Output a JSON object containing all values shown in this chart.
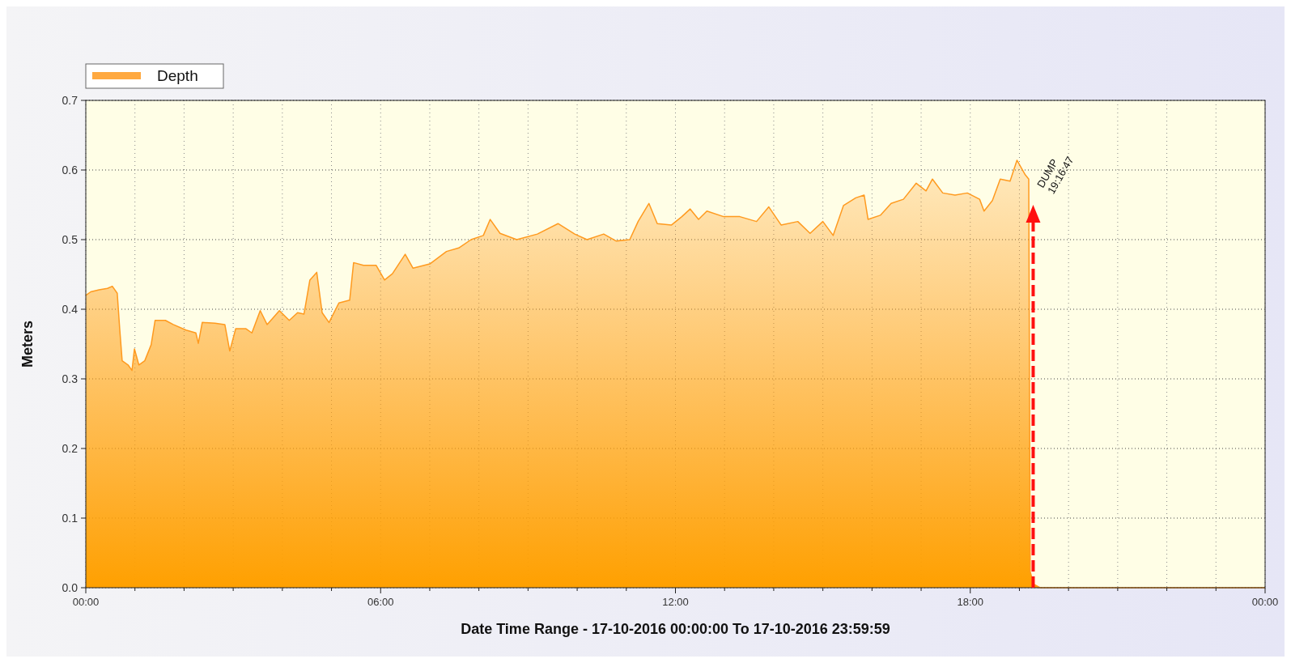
{
  "chart_data": {
    "type": "area",
    "xlabel": "Date Time Range - 17-10-2016 00:00:00 To 17-10-2016 23:59:59",
    "ylabel": "Meters",
    "legend": "top left",
    "grid": true,
    "marker": "none",
    "xlim": [
      0,
      24
    ],
    "xticks": [
      {
        "value": 0,
        "label": "00:00"
      },
      {
        "value": 1,
        "label": null
      },
      {
        "value": 2,
        "label": null
      },
      {
        "value": 3,
        "label": null
      },
      {
        "value": 4,
        "label": null
      },
      {
        "value": 5,
        "label": null
      },
      {
        "value": 6,
        "label": "06:00"
      },
      {
        "value": 7,
        "label": null
      },
      {
        "value": 8,
        "label": null
      },
      {
        "value": 9,
        "label": null
      },
      {
        "value": 10,
        "label": null
      },
      {
        "value": 11,
        "label": null
      },
      {
        "value": 12,
        "label": "12:00"
      },
      {
        "value": 13,
        "label": null
      },
      {
        "value": 14,
        "label": null
      },
      {
        "value": 15,
        "label": null
      },
      {
        "value": 16,
        "label": null
      },
      {
        "value": 17,
        "label": null
      },
      {
        "value": 18,
        "label": "18:00"
      },
      {
        "value": 19,
        "label": null
      },
      {
        "value": 20,
        "label": null
      },
      {
        "value": 21,
        "label": null
      },
      {
        "value": 22,
        "label": null
      },
      {
        "value": 23,
        "label": null
      },
      {
        "value": 24,
        "label": "00:00"
      }
    ],
    "ylim": [
      0,
      0.7
    ],
    "yticks": [
      {
        "value": 0,
        "label": "0.0"
      },
      0.1,
      0.2,
      0.3,
      0.4,
      0.5,
      0.6,
      0.7
    ],
    "annotations": [
      {
        "text": "DUMP 19:16:47",
        "x": 19.28,
        "y": 0.55
      }
    ],
    "series": [
      {
        "name": "Depth",
        "color": "#ff9a1f",
        "x": [
          0,
          0.1,
          0.27,
          0.44,
          0.54,
          0.64,
          0.69,
          0.74,
          0.86,
          0.94,
          0.99,
          1.08,
          1.2,
          1.33,
          1.41,
          1.62,
          1.78,
          2.04,
          2.24,
          2.29,
          2.37,
          2.63,
          2.83,
          2.93,
          3.05,
          3.26,
          3.38,
          3.55,
          3.69,
          3.94,
          4.14,
          4.31,
          4.44,
          4.56,
          4.7,
          4.81,
          4.95,
          5.15,
          5.37,
          5.45,
          5.65,
          5.91,
          6.08,
          6.24,
          6.5,
          6.66,
          7.0,
          7.34,
          7.59,
          7.84,
          8.09,
          8.23,
          8.43,
          8.77,
          9.19,
          9.61,
          9.95,
          10.2,
          10.54,
          10.79,
          11.07,
          11.24,
          11.46,
          11.63,
          11.92,
          12.13,
          12.3,
          12.47,
          12.64,
          12.98,
          13.31,
          13.65,
          13.9,
          14.15,
          14.49,
          14.74,
          15.0,
          15.21,
          15.42,
          15.67,
          15.84,
          15.92,
          16.17,
          16.39,
          16.64,
          16.9,
          17.1,
          17.23,
          17.44,
          17.69,
          17.94,
          18.19,
          18.28,
          18.45,
          18.61,
          18.81,
          18.95,
          19.12,
          19.19,
          19.22,
          19.29,
          19.42,
          24
        ],
        "values": [
          0.42,
          0.425,
          0.428,
          0.43,
          0.433,
          0.423,
          0.372,
          0.326,
          0.32,
          0.312,
          0.343,
          0.32,
          0.326,
          0.349,
          0.384,
          0.384,
          0.378,
          0.37,
          0.366,
          0.351,
          0.381,
          0.38,
          0.378,
          0.34,
          0.372,
          0.372,
          0.366,
          0.398,
          0.378,
          0.398,
          0.384,
          0.395,
          0.393,
          0.442,
          0.453,
          0.395,
          0.381,
          0.409,
          0.413,
          0.467,
          0.463,
          0.463,
          0.442,
          0.451,
          0.479,
          0.459,
          0.465,
          0.483,
          0.488,
          0.5,
          0.506,
          0.529,
          0.509,
          0.5,
          0.508,
          0.523,
          0.508,
          0.5,
          0.508,
          0.498,
          0.5,
          0.526,
          0.552,
          0.523,
          0.521,
          0.533,
          0.544,
          0.529,
          0.541,
          0.533,
          0.533,
          0.526,
          0.547,
          0.521,
          0.526,
          0.509,
          0.526,
          0.506,
          0.549,
          0.56,
          0.564,
          0.529,
          0.535,
          0.552,
          0.558,
          0.581,
          0.57,
          0.587,
          0.567,
          0.564,
          0.567,
          0.558,
          0.541,
          0.556,
          0.587,
          0.584,
          0.614,
          0.593,
          0.587,
          0.023,
          0.005,
          0,
          0
        ]
      }
    ]
  }
}
